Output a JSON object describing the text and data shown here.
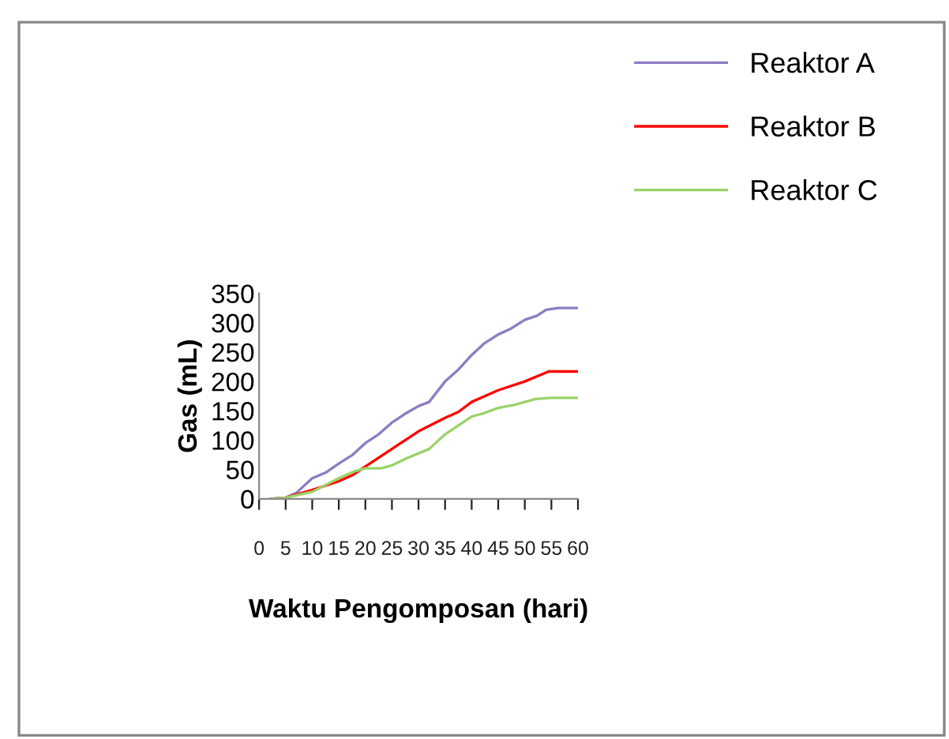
{
  "chart_data": {
    "type": "line",
    "xlabel": "Waktu Pengomposan (hari)",
    "ylabel": "Gas (mL)",
    "xlim": [
      0,
      60
    ],
    "xticks": [
      0,
      5,
      10,
      15,
      20,
      25,
      30,
      35,
      40,
      45,
      50,
      55,
      60
    ],
    "ylim": [
      0,
      350
    ],
    "yticks": [
      0,
      50,
      100,
      150,
      200,
      250,
      300,
      350
    ],
    "grid": false,
    "legend": "top right",
    "marker": "none",
    "line_style": "solid",
    "series": [
      {
        "name": "Reaktor A",
        "color": "#8e7cc3",
        "x": [
          2.2,
          5,
          7,
          10,
          12.6,
          15,
          17.6,
          20,
          22.5,
          25,
          27.5,
          30,
          32,
          35,
          37.5,
          40,
          42.4,
          45,
          47.4,
          50,
          52.3,
          54,
          56.3,
          60
        ],
        "values": [
          0,
          2,
          10,
          35,
          45,
          60,
          75,
          95,
          110,
          130,
          145,
          158,
          165,
          200,
          220,
          245,
          265,
          280,
          290,
          305,
          312,
          322,
          325,
          325
        ]
      },
      {
        "name": "Reaktor B",
        "color": "#ff0000",
        "x": [
          2.2,
          5,
          10,
          15,
          17.5,
          20,
          25,
          30,
          35,
          37.5,
          40,
          45,
          50,
          54.5,
          60
        ],
        "values": [
          0,
          2,
          15,
          30,
          40,
          55,
          85,
          115,
          138,
          148,
          165,
          185,
          200,
          217,
          217
        ]
      },
      {
        "name": "Reaktor C",
        "color": "#9bd36a",
        "x": [
          2.2,
          5,
          10,
          15,
          18,
          20,
          23,
          25,
          28,
          32,
          35,
          40,
          42,
          45,
          48,
          52,
          55,
          60
        ],
        "values": [
          0,
          2,
          12,
          35,
          47,
          52,
          52,
          57,
          70,
          85,
          110,
          140,
          145,
          155,
          160,
          170,
          172,
          172
        ]
      }
    ]
  }
}
